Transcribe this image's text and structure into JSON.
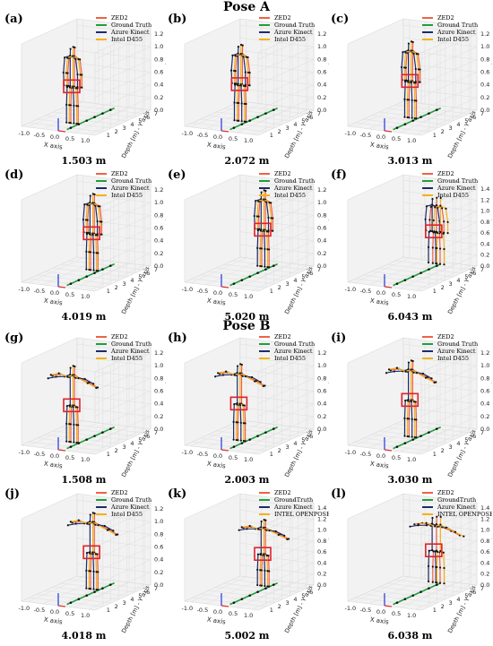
{
  "figure": {
    "pose_titles": [
      "Pose A",
      "Pose B"
    ]
  },
  "colors": {
    "ZED2": "#ef6146",
    "Ground Truth": "#1f9e3b",
    "Azure Kinect": "#1d2b6b",
    "Intel D455": "#f3b21b",
    "marker": "#111111",
    "box": "#e0202a"
  },
  "chart_data": [
    {
      "type": "scatter",
      "panel": "(a)",
      "pose": "Pose A",
      "distance": "1.503 m",
      "legend": [
        "ZED2",
        "Ground Truth",
        "Azure Kinect",
        "Intel D455"
      ],
      "xlabel": "X axis",
      "ylabel": "Depth [m] - Y axis",
      "zlabel": "Z axis",
      "x_ticks": [
        "-1.0",
        "-0.5",
        "0.0",
        "0.5",
        "1.0"
      ],
      "y_ticks": [
        "1",
        "2",
        "3",
        "4",
        "5",
        "6",
        "7"
      ],
      "z_ticks": [
        "0.0",
        "0.2",
        "0.4",
        "0.6",
        "0.8",
        "1.0",
        "1.2"
      ],
      "xlim": [
        -1.2,
        1.2
      ],
      "ylim": [
        0,
        7
      ],
      "zlim": [
        0,
        1.3
      ],
      "ground_truth_depths": [
        1,
        2,
        3,
        4,
        5,
        6
      ],
      "subject_depth": 1.5,
      "arms": "down"
    },
    {
      "type": "scatter",
      "panel": "(b)",
      "pose": "Pose A",
      "distance": "2.072 m",
      "legend": [
        "ZED2",
        "Ground Truth",
        "Azure Kinect",
        "Intel D455"
      ],
      "xlabel": "X axis",
      "ylabel": "Depth [m] - Y axis",
      "zlabel": "Z axis",
      "x_ticks": [
        "-1.0",
        "-0.5",
        "0.0",
        "0.5",
        "1.0"
      ],
      "y_ticks": [
        "1",
        "2",
        "3",
        "4",
        "5",
        "6",
        "7"
      ],
      "z_ticks": [
        "0.0",
        "0.2",
        "0.4",
        "0.6",
        "0.8",
        "1.0",
        "1.2"
      ],
      "xlim": [
        -1.2,
        1.2
      ],
      "ylim": [
        0,
        7
      ],
      "zlim": [
        0,
        1.3
      ],
      "ground_truth_depths": [
        1,
        2,
        3,
        4,
        5,
        6
      ],
      "subject_depth": 2.1,
      "arms": "down"
    },
    {
      "type": "scatter",
      "panel": "(c)",
      "pose": "Pose A",
      "distance": "3.013 m",
      "legend": [
        "ZED2",
        "Ground Truth",
        "Azure Kinect",
        "Intel D455"
      ],
      "xlabel": "X axis",
      "ylabel": "Depth [m] - Y axis",
      "zlabel": "Z axis",
      "x_ticks": [
        "-1.0",
        "-0.5",
        "0.0",
        "0.5",
        "1.0"
      ],
      "y_ticks": [
        "1",
        "2",
        "3",
        "4",
        "5",
        "6",
        "7"
      ],
      "z_ticks": [
        "0.0",
        "0.2",
        "0.4",
        "0.6",
        "0.8",
        "1.0",
        "1.2"
      ],
      "xlim": [
        -1.2,
        1.2
      ],
      "ylim": [
        0,
        7
      ],
      "zlim": [
        0,
        1.3
      ],
      "ground_truth_depths": [
        1,
        2,
        3,
        4,
        5,
        6
      ],
      "subject_depth": 3.0,
      "arms": "down"
    },
    {
      "type": "scatter",
      "panel": "(d)",
      "pose": "Pose A",
      "distance": "4.019 m",
      "legend": [
        "ZED2",
        "Ground Truth",
        "Azure Kinect",
        "Intel D455"
      ],
      "xlabel": "X axis",
      "ylabel": "Depth [m] - Y axis",
      "zlabel": "Z axis",
      "x_ticks": [
        "-1.0",
        "-0.5",
        "0.0",
        "0.5",
        "1.0"
      ],
      "y_ticks": [
        "1",
        "2",
        "3",
        "4",
        "5",
        "6",
        "7"
      ],
      "z_ticks": [
        "0.0",
        "0.2",
        "0.4",
        "0.6",
        "0.8",
        "1.0",
        "1.2"
      ],
      "xlim": [
        -1.2,
        1.2
      ],
      "ylim": [
        0,
        7
      ],
      "zlim": [
        0,
        1.3
      ],
      "ground_truth_depths": [
        1,
        2,
        3,
        4,
        5,
        6
      ],
      "subject_depth": 4.0,
      "arms": "down"
    },
    {
      "type": "scatter",
      "panel": "(e)",
      "pose": "Pose A",
      "distance": "5.020 m",
      "legend": [
        "ZED2",
        "Ground Truth",
        "Azure Kinect",
        "Intel D455"
      ],
      "xlabel": "X axis",
      "ylabel": "Depth [m] - Y axis",
      "zlabel": "Z axis",
      "x_ticks": [
        "-1.0",
        "-0.5",
        "0.0",
        "0.5",
        "1.0"
      ],
      "y_ticks": [
        "1",
        "2",
        "3",
        "4",
        "5",
        "6",
        "7"
      ],
      "z_ticks": [
        "0.0",
        "0.2",
        "0.4",
        "0.6",
        "0.8",
        "1.0",
        "1.2"
      ],
      "xlim": [
        -1.2,
        1.2
      ],
      "ylim": [
        0,
        7
      ],
      "zlim": [
        0,
        1.3
      ],
      "ground_truth_depths": [
        1,
        2,
        3,
        4,
        5,
        6
      ],
      "subject_depth": 5.0,
      "arms": "down"
    },
    {
      "type": "scatter",
      "panel": "(f)",
      "pose": "Pose A",
      "distance": "6.043 m",
      "legend": [
        "ZED2",
        "Ground Truth",
        "Azure Kinect",
        "Intel D455"
      ],
      "xlabel": "X axis",
      "ylabel": "Depth [m] - Y axis",
      "zlabel": "Z axis",
      "x_ticks": [
        "-1.0",
        "-0.5",
        "0.0",
        "0.5",
        "1.0"
      ],
      "y_ticks": [
        "1",
        "2",
        "3",
        "4",
        "5",
        "6",
        "7"
      ],
      "z_ticks": [
        "0.0",
        "0.2",
        "0.4",
        "0.6",
        "0.8",
        "1.0",
        "1.2",
        "1.4"
      ],
      "xlim": [
        -1.2,
        1.2
      ],
      "ylim": [
        0,
        7
      ],
      "zlim": [
        0,
        1.5
      ],
      "ground_truth_depths": [
        1,
        2,
        3,
        4,
        5,
        6
      ],
      "subject_depth": 6.0,
      "arms": "down"
    },
    {
      "type": "scatter",
      "panel": "(g)",
      "pose": "Pose B",
      "distance": "1.508 m",
      "legend": [
        "ZED2",
        "Ground Truth",
        "Azure Kinect",
        "Intel D455"
      ],
      "xlabel": "X axis",
      "ylabel": "Depth [m] - Y axis",
      "zlabel": "Z axis",
      "x_ticks": [
        "-1.0",
        "-0.5",
        "0.0",
        "0.5",
        "1.0"
      ],
      "y_ticks": [
        "1",
        "2",
        "3",
        "4",
        "5",
        "6",
        "7"
      ],
      "z_ticks": [
        "0.0",
        "0.2",
        "0.4",
        "0.6",
        "0.8",
        "1.0",
        "1.2"
      ],
      "xlim": [
        -1.2,
        1.2
      ],
      "ylim": [
        0,
        7
      ],
      "zlim": [
        0,
        1.3
      ],
      "ground_truth_depths": [
        1,
        2,
        3,
        4,
        5,
        6
      ],
      "subject_depth": 1.5,
      "arms": "out"
    },
    {
      "type": "scatter",
      "panel": "(h)",
      "pose": "Pose B",
      "distance": "2.003 m",
      "legend": [
        "ZED2",
        "Ground Truth",
        "Azure Kinect",
        "Intel D455"
      ],
      "xlabel": "X axis",
      "ylabel": "Depth [m] - Y axis",
      "zlabel": "Z axis",
      "x_ticks": [
        "-1.0",
        "-0.5",
        "0.0",
        "0.5",
        "1.0"
      ],
      "y_ticks": [
        "1",
        "2",
        "3",
        "4",
        "5",
        "6",
        "7"
      ],
      "z_ticks": [
        "0.0",
        "0.2",
        "0.4",
        "0.6",
        "0.8",
        "1.0",
        "1.2"
      ],
      "xlim": [
        -1.2,
        1.2
      ],
      "ylim": [
        0,
        7
      ],
      "zlim": [
        0,
        1.3
      ],
      "ground_truth_depths": [
        1,
        2,
        3,
        4,
        5,
        6
      ],
      "subject_depth": 2.0,
      "arms": "out"
    },
    {
      "type": "scatter",
      "panel": "(i)",
      "pose": "Pose B",
      "distance": "3.030 m",
      "legend": [
        "ZED2",
        "Ground Truth",
        "Azure Kinect",
        "Intel D455"
      ],
      "xlabel": "X axis",
      "ylabel": "Depth [m] - Y axis",
      "zlabel": "Z axis",
      "x_ticks": [
        "-1.0",
        "-0.5",
        "0.0",
        "0.5",
        "1.0"
      ],
      "y_ticks": [
        "1",
        "2",
        "3",
        "4",
        "5",
        "6",
        "7"
      ],
      "z_ticks": [
        "0.0",
        "0.2",
        "0.4",
        "0.6",
        "0.8",
        "1.0",
        "1.2"
      ],
      "xlim": [
        -1.2,
        1.2
      ],
      "ylim": [
        0,
        7
      ],
      "zlim": [
        0,
        1.3
      ],
      "ground_truth_depths": [
        1,
        2,
        3,
        4,
        5,
        6
      ],
      "subject_depth": 3.0,
      "arms": "out"
    },
    {
      "type": "scatter",
      "panel": "(j)",
      "pose": "Pose B",
      "distance": "4.018 m",
      "legend": [
        "ZED2",
        "Ground Truth",
        "Azure Kinect",
        "Intel D455"
      ],
      "xlabel": "X axis",
      "ylabel": "Depth [m] - Y axis",
      "zlabel": "Z axis",
      "x_ticks": [
        "-1.0",
        "-0.5",
        "0.0",
        "0.5",
        "1.0"
      ],
      "y_ticks": [
        "1",
        "2",
        "3",
        "4",
        "5",
        "6",
        "7"
      ],
      "z_ticks": [
        "0.0",
        "0.2",
        "0.4",
        "0.6",
        "0.8",
        "1.0",
        "1.2"
      ],
      "xlim": [
        -1.2,
        1.2
      ],
      "ylim": [
        0,
        7
      ],
      "zlim": [
        0,
        1.3
      ],
      "ground_truth_depths": [
        1,
        2,
        3,
        4,
        5,
        6
      ],
      "subject_depth": 4.0,
      "arms": "out"
    },
    {
      "type": "scatter",
      "panel": "(k)",
      "pose": "Pose B",
      "distance": "5.002 m",
      "legend": [
        "ZED2",
        "GroundTruth",
        "Azure Kinect",
        "INTEL OPENPOSE"
      ],
      "xlabel": "X axis",
      "ylabel": "Depth [m] - Y axis",
      "zlabel": "Z axis",
      "x_ticks": [
        "-1.0",
        "-0.5",
        "0.0",
        "0.5",
        "1.0"
      ],
      "y_ticks": [
        "1",
        "2",
        "3",
        "4",
        "5",
        "6",
        "7"
      ],
      "z_ticks": [
        "0.0",
        "0.2",
        "0.4",
        "0.6",
        "0.8",
        "1.0",
        "1.2",
        "1.4"
      ],
      "xlim": [
        -1.2,
        1.2
      ],
      "ylim": [
        0,
        7
      ],
      "zlim": [
        0,
        1.5
      ],
      "ground_truth_depths": [
        1,
        2,
        3,
        4,
        5,
        6
      ],
      "subject_depth": 5.0,
      "arms": "out"
    },
    {
      "type": "scatter",
      "panel": "(l)",
      "pose": "Pose B",
      "distance": "6.038 m",
      "legend": [
        "ZED2",
        "GroundTruth",
        "Azure Kinect",
        "INTEL OPENPOSE"
      ],
      "xlabel": "X axis",
      "ylabel": "Depth [m] - Y axis",
      "zlabel": "Z axis",
      "x_ticks": [
        "-1.0",
        "-0.5",
        "0.0",
        "0.5",
        "1.0"
      ],
      "y_ticks": [
        "1",
        "2",
        "3",
        "4",
        "5",
        "6",
        "7"
      ],
      "z_ticks": [
        "0.0",
        "0.2",
        "0.4",
        "0.6",
        "0.8",
        "1.0",
        "1.2",
        "1.4"
      ],
      "xlim": [
        -1.2,
        1.2
      ],
      "ylim": [
        0,
        7
      ],
      "zlim": [
        0,
        1.5
      ],
      "ground_truth_depths": [
        1,
        2,
        3,
        4,
        5,
        6
      ],
      "subject_depth": 6.0,
      "arms": "out"
    }
  ]
}
